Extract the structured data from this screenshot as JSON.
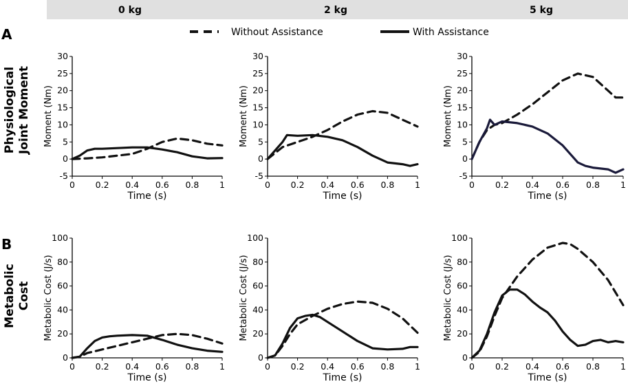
{
  "header": {
    "loads": [
      "0 kg",
      "2 kg",
      "5 kg"
    ],
    "background": "#e0e0e0"
  },
  "panel_letters": [
    "A",
    "B"
  ],
  "row_labels": [
    [
      "Physiological",
      "Joint Moment"
    ],
    [
      "Metabolic",
      "Cost"
    ]
  ],
  "legend": {
    "without": "Without Assistance",
    "with": "With Assistance"
  },
  "colors": {
    "line": "#111111",
    "line_5kg_moment": "#1a1a3a",
    "axis": "#000000"
  },
  "chart_data": [
    {
      "type": "line",
      "row": "moment",
      "load": "0 kg",
      "xlabel": "Time (s)",
      "ylabel": "Moment (Nm)",
      "xlim": [
        0,
        1
      ],
      "ylim": [
        -5,
        30
      ],
      "xticks": [
        0,
        0.2,
        0.4,
        0.6,
        0.8,
        1
      ],
      "xtick_labels": [
        "0",
        "0.2",
        "0.4",
        "0.6",
        "0.8",
        "1"
      ],
      "yticks": [
        -5,
        0,
        5,
        10,
        15,
        20,
        25,
        30
      ],
      "ytick_labels": [
        "-5",
        "0",
        "5",
        "10",
        "15",
        "20",
        "25",
        "30"
      ],
      "series": [
        {
          "name": "Without Assistance",
          "style": "dashed",
          "x": [
            0,
            0.1,
            0.2,
            0.3,
            0.4,
            0.5,
            0.6,
            0.7,
            0.8,
            0.9,
            1.0
          ],
          "y": [
            0,
            0.2,
            0.5,
            1.0,
            1.5,
            3.0,
            5.0,
            6.0,
            5.5,
            4.5,
            4.0
          ]
        },
        {
          "name": "With Assistance",
          "style": "solid",
          "x": [
            0,
            0.05,
            0.1,
            0.15,
            0.2,
            0.3,
            0.4,
            0.5,
            0.6,
            0.7,
            0.8,
            0.9,
            1.0
          ],
          "y": [
            0,
            1.0,
            2.5,
            3.0,
            3.0,
            3.2,
            3.4,
            3.4,
            2.8,
            2.0,
            0.8,
            0.2,
            0.3
          ]
        }
      ]
    },
    {
      "type": "line",
      "row": "moment",
      "load": "2 kg",
      "xlabel": "Time (s)",
      "ylabel": "Moment (Nm)",
      "xlim": [
        0,
        1
      ],
      "ylim": [
        -5,
        30
      ],
      "xticks": [
        0,
        0.2,
        0.4,
        0.6,
        0.8,
        1
      ],
      "xtick_labels": [
        "0",
        "0.2",
        "0.4",
        "0.6",
        "0.8",
        "1"
      ],
      "yticks": [
        -5,
        0,
        5,
        10,
        15,
        20,
        25,
        30
      ],
      "ytick_labels": [
        "-5",
        "0",
        "5",
        "10",
        "15",
        "20",
        "25",
        "30"
      ],
      "series": [
        {
          "name": "Without Assistance",
          "style": "dashed",
          "x": [
            0,
            0.1,
            0.2,
            0.3,
            0.4,
            0.5,
            0.6,
            0.7,
            0.8,
            0.9,
            1.0
          ],
          "y": [
            0,
            3.5,
            5.0,
            6.5,
            8.5,
            11.0,
            13.0,
            14.0,
            13.5,
            11.5,
            9.5
          ]
        },
        {
          "name": "With Assistance",
          "style": "solid",
          "x": [
            0,
            0.05,
            0.1,
            0.13,
            0.2,
            0.3,
            0.4,
            0.5,
            0.6,
            0.7,
            0.8,
            0.9,
            0.95,
            1.0
          ],
          "y": [
            0,
            2.5,
            5.0,
            7.0,
            6.8,
            7.0,
            6.5,
            5.5,
            3.5,
            1.0,
            -1.0,
            -1.5,
            -2.0,
            -1.5
          ]
        }
      ]
    },
    {
      "type": "line",
      "row": "moment",
      "load": "5 kg",
      "xlabel": "Time (s)",
      "ylabel": "Moment (Nm)",
      "xlim": [
        0,
        1
      ],
      "ylim": [
        -5,
        30
      ],
      "xticks": [
        0,
        0.2,
        0.4,
        0.6,
        0.8,
        1
      ],
      "xtick_labels": [
        "0",
        "0.2",
        "0.4",
        "0.6",
        "0.8",
        "1"
      ],
      "yticks": [
        -5,
        0,
        5,
        10,
        15,
        20,
        25,
        30
      ],
      "ytick_labels": [
        "-5",
        "0",
        "5",
        "10",
        "15",
        "20",
        "25",
        "30"
      ],
      "series": [
        {
          "name": "Without Assistance",
          "style": "dashed",
          "x": [
            0,
            0.05,
            0.1,
            0.15,
            0.2,
            0.3,
            0.4,
            0.5,
            0.6,
            0.7,
            0.8,
            0.9,
            0.95,
            1.0
          ],
          "y": [
            0,
            5.0,
            8.5,
            10.0,
            10.5,
            13.0,
            16.0,
            19.5,
            23.0,
            25.0,
            24.0,
            20.0,
            18.0,
            18.0
          ]
        },
        {
          "name": "With Assistance",
          "style": "solid",
          "x": [
            0,
            0.05,
            0.1,
            0.12,
            0.15,
            0.2,
            0.3,
            0.4,
            0.5,
            0.6,
            0.7,
            0.75,
            0.8,
            0.9,
            0.95,
            1.0
          ],
          "y": [
            0,
            5.0,
            9.0,
            11.5,
            10.0,
            11.0,
            10.5,
            9.5,
            7.5,
            4.0,
            -1.0,
            -2.0,
            -2.5,
            -3.0,
            -4.0,
            -3.0
          ]
        }
      ]
    },
    {
      "type": "line",
      "row": "metabolic",
      "load": "0 kg",
      "xlabel": "Time (s)",
      "ylabel": "Metabolic Cost (J/s)",
      "xlim": [
        0,
        1
      ],
      "ylim": [
        0,
        100
      ],
      "xticks": [
        0,
        0.2,
        0.4,
        0.6,
        0.8,
        1
      ],
      "xtick_labels": [
        "0",
        "0.2",
        "0.4",
        "0.6",
        "0.8",
        "1"
      ],
      "yticks": [
        0,
        20,
        40,
        60,
        80,
        100
      ],
      "ytick_labels": [
        "0",
        "20",
        "40",
        "60",
        "80",
        "100"
      ],
      "series": [
        {
          "name": "Without Assistance",
          "style": "dashed",
          "x": [
            0,
            0.05,
            0.1,
            0.2,
            0.3,
            0.4,
            0.5,
            0.6,
            0.7,
            0.8,
            0.9,
            1.0
          ],
          "y": [
            0,
            1,
            4,
            7,
            10,
            13,
            16,
            19,
            20,
            19,
            16,
            12
          ]
        },
        {
          "name": "With Assistance",
          "style": "solid",
          "x": [
            0,
            0.05,
            0.1,
            0.15,
            0.2,
            0.25,
            0.3,
            0.4,
            0.5,
            0.6,
            0.7,
            0.8,
            0.9,
            1.0
          ],
          "y": [
            0,
            1,
            8,
            14,
            17,
            18,
            18.5,
            19,
            18.5,
            15,
            11,
            8,
            6,
            5
          ]
        }
      ]
    },
    {
      "type": "line",
      "row": "metabolic",
      "load": "2 kg",
      "xlabel": "Time (s)",
      "ylabel": "Metabolic Cost (J/s)",
      "xlim": [
        0,
        1
      ],
      "ylim": [
        0,
        100
      ],
      "xticks": [
        0,
        0.2,
        0.4,
        0.6,
        0.8,
        1
      ],
      "xtick_labels": [
        "0",
        "0.2",
        "0.4",
        "0.6",
        "0.8",
        "1"
      ],
      "yticks": [
        0,
        20,
        40,
        60,
        80,
        100
      ],
      "ytick_labels": [
        "0",
        "20",
        "40",
        "60",
        "80",
        "100"
      ],
      "series": [
        {
          "name": "Without Assistance",
          "style": "dashed",
          "x": [
            0,
            0.05,
            0.1,
            0.15,
            0.2,
            0.3,
            0.4,
            0.5,
            0.6,
            0.7,
            0.8,
            0.9,
            1.0
          ],
          "y": [
            0,
            2,
            10,
            20,
            28,
            35,
            41,
            45,
            47,
            46,
            41,
            33,
            21
          ]
        },
        {
          "name": "With Assistance",
          "style": "solid",
          "x": [
            0,
            0.05,
            0.1,
            0.15,
            0.2,
            0.25,
            0.3,
            0.35,
            0.4,
            0.5,
            0.6,
            0.7,
            0.8,
            0.9,
            0.95,
            1.0
          ],
          "y": [
            0,
            2,
            12,
            25,
            33,
            35,
            36,
            34,
            30,
            22,
            14,
            8,
            7,
            7.5,
            9,
            9
          ]
        }
      ]
    },
    {
      "type": "line",
      "row": "metabolic",
      "load": "5 kg",
      "xlabel": "Time (s)",
      "ylabel": "Metabolic Cost (J/s)",
      "xlim": [
        0,
        1
      ],
      "ylim": [
        0,
        100
      ],
      "xticks": [
        0,
        0.2,
        0.4,
        0.6,
        0.8,
        1
      ],
      "xtick_labels": [
        "0",
        "0.2",
        "0.4",
        "0.6",
        "0.8",
        "1"
      ],
      "yticks": [
        0,
        20,
        40,
        60,
        80,
        100
      ],
      "ytick_labels": [
        "0",
        "20",
        "40",
        "60",
        "80",
        "100"
      ],
      "series": [
        {
          "name": "Without Assistance",
          "style": "dashed",
          "x": [
            0,
            0.05,
            0.1,
            0.15,
            0.2,
            0.3,
            0.4,
            0.5,
            0.6,
            0.65,
            0.7,
            0.8,
            0.9,
            1.0
          ],
          "y": [
            0,
            5,
            18,
            35,
            50,
            68,
            82,
            92,
            96,
            95,
            91,
            80,
            65,
            44
          ]
        },
        {
          "name": "With Assistance",
          "style": "solid",
          "x": [
            0,
            0.05,
            0.1,
            0.15,
            0.2,
            0.25,
            0.3,
            0.35,
            0.4,
            0.45,
            0.5,
            0.55,
            0.6,
            0.65,
            0.7,
            0.75,
            0.8,
            0.85,
            0.9,
            0.95,
            1.0
          ],
          "y": [
            0,
            6,
            20,
            38,
            52,
            57,
            57,
            53,
            47,
            42,
            38,
            31,
            22,
            15,
            10,
            11,
            14,
            15,
            13,
            14,
            13
          ]
        }
      ]
    }
  ]
}
